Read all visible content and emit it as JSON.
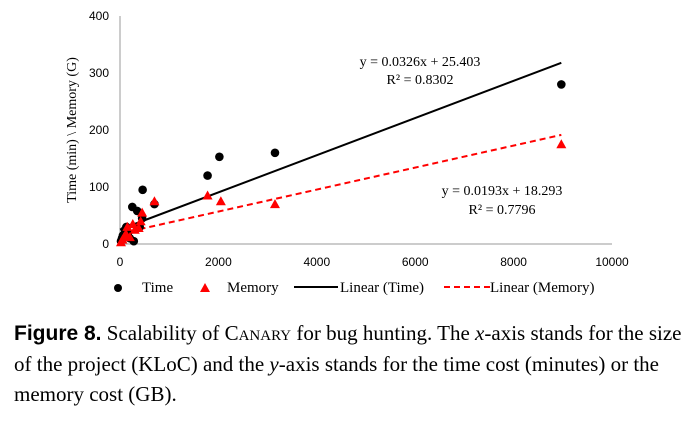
{
  "chart_data": {
    "type": "scatter",
    "xlim": [
      0,
      10000
    ],
    "ylim": [
      0,
      400
    ],
    "xticks": [
      0,
      2000,
      4000,
      6000,
      8000,
      10000
    ],
    "yticks": [
      0,
      100,
      200,
      300,
      400
    ],
    "ylabel": "Time (min) \\ Memory (G)",
    "grid": false,
    "legend_position": "bottom",
    "series": [
      {
        "name": "Time",
        "marker": "circle",
        "color": "#000000",
        "x": [
          20,
          40,
          60,
          100,
          130,
          160,
          200,
          250,
          280,
          350,
          400,
          450,
          460,
          700,
          1780,
          2020,
          3150,
          8970
        ],
        "y": [
          5,
          10,
          15,
          25,
          30,
          18,
          10,
          65,
          5,
          58,
          30,
          45,
          95,
          70,
          120,
          153,
          160,
          280
        ]
      },
      {
        "name": "Memory",
        "marker": "triangle",
        "color": "#ff0000",
        "x": [
          20,
          50,
          80,
          120,
          150,
          200,
          260,
          300,
          380,
          420,
          450,
          700,
          1780,
          2050,
          3150,
          8970
        ],
        "y": [
          3,
          8,
          12,
          18,
          30,
          12,
          35,
          25,
          28,
          40,
          55,
          75,
          85,
          75,
          70,
          175
        ]
      }
    ],
    "trendlines": [
      {
        "name": "Linear (Time)",
        "slope": 0.0326,
        "intercept": 25.403,
        "color": "#000000",
        "dash": "solid",
        "equation": "y = 0.0326x + 25.403",
        "r2": "R² = 0.8302",
        "x_range": [
          0,
          8970
        ]
      },
      {
        "name": "Linear (Memory)",
        "slope": 0.0193,
        "intercept": 18.293,
        "color": "#ff0000",
        "dash": "dashed",
        "equation": "y = 0.0193x + 18.293",
        "r2": "R² = 0.7796",
        "x_range": [
          0,
          8970
        ]
      }
    ]
  },
  "caption": {
    "lead": "Figure 8.",
    "text_1": " Scalability of ",
    "tool": "Canary",
    "text_2": " for bug hunting. The ",
    "x_var": "x",
    "text_3": "-axis stands for the size of the project (KLoC) and the ",
    "y_var": "y",
    "text_4": "-axis stands for the time cost (minutes) or the memory cost (GB)."
  }
}
